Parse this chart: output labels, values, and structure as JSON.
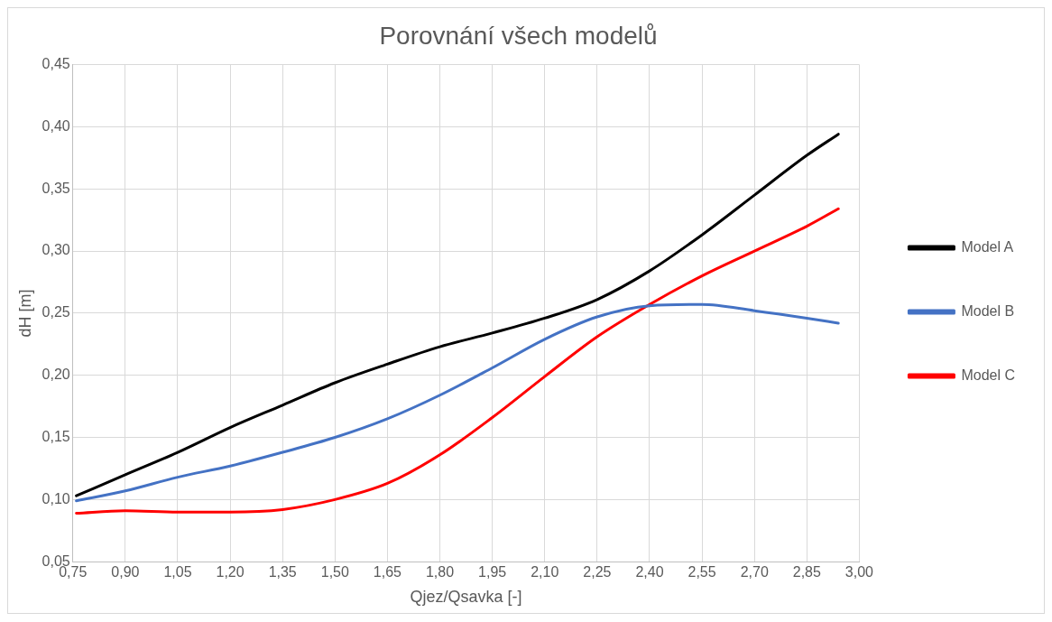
{
  "chart_data": {
    "type": "line",
    "title": "Porovnání všech modelů",
    "xlabel": "Qjez/Qsavka [-]",
    "ylabel": "dH [m]",
    "x": [
      0.76,
      0.9,
      1.05,
      1.2,
      1.35,
      1.5,
      1.65,
      1.8,
      1.95,
      2.1,
      2.25,
      2.4,
      2.55,
      2.7,
      2.85,
      2.94
    ],
    "series": [
      {
        "name": "Model A",
        "color": "#000000",
        "values": [
          0.103,
          0.12,
          0.138,
          0.158,
          0.176,
          0.194,
          0.209,
          0.223,
          0.234,
          0.246,
          0.261,
          0.284,
          0.313,
          0.345,
          0.377,
          0.394
        ]
      },
      {
        "name": "Model B",
        "color": "#4472c4",
        "values": [
          0.099,
          0.107,
          0.118,
          0.127,
          0.138,
          0.15,
          0.165,
          0.184,
          0.206,
          0.229,
          0.247,
          0.256,
          0.257,
          0.252,
          0.246,
          0.242
        ]
      },
      {
        "name": "Model C",
        "color": "#ff0000",
        "values": [
          0.089,
          0.091,
          0.09,
          0.09,
          0.092,
          0.1,
          0.113,
          0.136,
          0.166,
          0.199,
          0.231,
          0.257,
          0.28,
          0.3,
          0.32,
          0.334
        ]
      }
    ],
    "xlim": [
      0.75,
      3.0
    ],
    "xticks": [
      {
        "value": 0.75,
        "label": "0,75"
      },
      {
        "value": 0.9,
        "label": "0,90"
      },
      {
        "value": 1.05,
        "label": "1,05"
      },
      {
        "value": 1.2,
        "label": "1,20"
      },
      {
        "value": 1.35,
        "label": "1,35"
      },
      {
        "value": 1.5,
        "label": "1,50"
      },
      {
        "value": 1.65,
        "label": "1,65"
      },
      {
        "value": 1.8,
        "label": "1,80"
      },
      {
        "value": 1.95,
        "label": "1,95"
      },
      {
        "value": 2.1,
        "label": "2,10"
      },
      {
        "value": 2.25,
        "label": "2,25"
      },
      {
        "value": 2.4,
        "label": "2,40"
      },
      {
        "value": 2.55,
        "label": "2,55"
      },
      {
        "value": 2.7,
        "label": "2,70"
      },
      {
        "value": 2.85,
        "label": "2,85"
      },
      {
        "value": 3.0,
        "label": "3,00"
      }
    ],
    "ylim": [
      0.05,
      0.45
    ],
    "yticks": [
      {
        "value": 0.05,
        "label": "0,05"
      },
      {
        "value": 0.1,
        "label": "0,10"
      },
      {
        "value": 0.15,
        "label": "0,15"
      },
      {
        "value": 0.2,
        "label": "0,20"
      },
      {
        "value": 0.25,
        "label": "0,25"
      },
      {
        "value": 0.3,
        "label": "0,30"
      },
      {
        "value": 0.35,
        "label": "0,35"
      },
      {
        "value": 0.4,
        "label": "0,40"
      },
      {
        "value": 0.45,
        "label": "0,45"
      }
    ],
    "grid": true,
    "legend": "right",
    "marker": "none",
    "line_style": "solid"
  }
}
